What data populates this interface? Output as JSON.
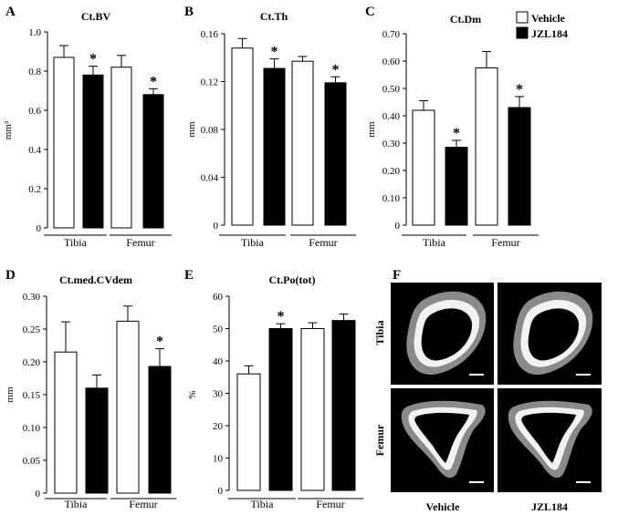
{
  "panel_letters": [
    "A",
    "B",
    "C",
    "D",
    "E",
    "F"
  ],
  "legend": [
    {
      "label": "Vehicle",
      "color": "#ffffff"
    },
    {
      "label": "JZL184",
      "color": "#000000"
    }
  ],
  "chart_data": [
    {
      "type": "bar",
      "title": "Ct.BV",
      "ylabel": "mm³",
      "ylim": [
        0,
        1.0
      ],
      "yticks": [
        "0",
        "0.2",
        "0.4",
        "0.6",
        "0.8",
        "1.0"
      ],
      "ytick_values": [
        0,
        0.2,
        0.4,
        0.6,
        0.8,
        1.0
      ],
      "categories": [
        "Tibia",
        "Femur"
      ],
      "series": [
        {
          "name": "Vehicle",
          "color": "#ffffff",
          "values": [
            0.87,
            0.82
          ],
          "errors": [
            0.06,
            0.06
          ]
        },
        {
          "name": "JZL184",
          "color": "#000000",
          "values": [
            0.78,
            0.68
          ],
          "errors": [
            0.045,
            0.03
          ]
        }
      ],
      "significance": [
        false,
        true,
        false,
        true
      ]
    },
    {
      "type": "bar",
      "title": "Ct.Th",
      "ylabel": "mm",
      "ylim": [
        0,
        0.16
      ],
      "yticks": [
        "0",
        "0.04",
        "0.08",
        "0.12",
        "0.16"
      ],
      "ytick_values": [
        0,
        0.04,
        0.08,
        0.12,
        0.16
      ],
      "categories": [
        "Tibia",
        "Femur"
      ],
      "series": [
        {
          "name": "Vehicle",
          "color": "#ffffff",
          "values": [
            0.148,
            0.137
          ],
          "errors": [
            0.008,
            0.004
          ]
        },
        {
          "name": "JZL184",
          "color": "#000000",
          "values": [
            0.131,
            0.119
          ],
          "errors": [
            0.008,
            0.005
          ]
        }
      ],
      "significance": [
        false,
        true,
        false,
        true
      ]
    },
    {
      "type": "bar",
      "title": "Ct.Dm",
      "ylabel": "mm",
      "ylim": [
        0,
        0.7
      ],
      "yticks": [
        "0",
        "0.10",
        "0.20",
        "0.30",
        "0.40",
        "0.50",
        "0.60",
        "0.70"
      ],
      "ytick_values": [
        0,
        0.1,
        0.2,
        0.3,
        0.4,
        0.5,
        0.6,
        0.7
      ],
      "categories": [
        "Tibia",
        "Femur"
      ],
      "series": [
        {
          "name": "Vehicle",
          "color": "#ffffff",
          "values": [
            0.42,
            0.575
          ],
          "errors": [
            0.035,
            0.06
          ]
        },
        {
          "name": "JZL184",
          "color": "#000000",
          "values": [
            0.285,
            0.43
          ],
          "errors": [
            0.025,
            0.04
          ]
        }
      ],
      "significance": [
        false,
        true,
        false,
        true
      ]
    },
    {
      "type": "bar",
      "title": "Ct.med.CVdem",
      "ylabel": "mm",
      "ylim": [
        0,
        0.3
      ],
      "yticks": [
        "0",
        "0.05",
        "0.10",
        "0.15",
        "0.20",
        "0.25",
        "0.30"
      ],
      "ytick_values": [
        0,
        0.05,
        0.1,
        0.15,
        0.2,
        0.25,
        0.3
      ],
      "categories": [
        "Tibia",
        "Femur"
      ],
      "series": [
        {
          "name": "Vehicle",
          "color": "#ffffff",
          "values": [
            0.215,
            0.262
          ],
          "errors": [
            0.046,
            0.023
          ]
        },
        {
          "name": "JZL184",
          "color": "#000000",
          "values": [
            0.16,
            0.193
          ],
          "errors": [
            0.02,
            0.027
          ]
        }
      ],
      "significance": [
        false,
        false,
        false,
        true
      ]
    },
    {
      "type": "bar",
      "title": "Ct.Po(tot)",
      "ylabel": "%",
      "ylim": [
        0,
        60
      ],
      "yticks": [
        "0",
        "10",
        "20",
        "30",
        "40",
        "50",
        "60"
      ],
      "ytick_values": [
        0,
        10,
        20,
        30,
        40,
        50,
        60
      ],
      "categories": [
        "Tibia",
        "Femur"
      ],
      "series": [
        {
          "name": "Vehicle",
          "color": "#ffffff",
          "values": [
            36,
            50
          ],
          "errors": [
            2.5,
            1.8
          ]
        },
        {
          "name": "JZL184",
          "color": "#000000",
          "values": [
            50,
            52.5
          ],
          "errors": [
            1.5,
            2
          ]
        }
      ],
      "significance": [
        false,
        true,
        false,
        false
      ]
    }
  ],
  "ct_images": {
    "row_labels": [
      "Tibia",
      "Femur"
    ],
    "column_labels": [
      "Vehicle",
      "JZL184"
    ]
  }
}
